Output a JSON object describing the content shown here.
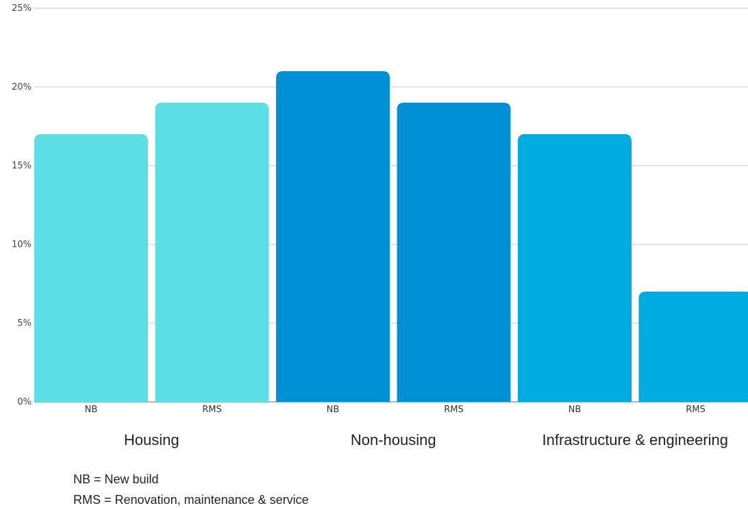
{
  "chart_data": {
    "type": "bar",
    "title": "",
    "xlabel": "",
    "ylabel": "",
    "ylim": [
      0,
      25
    ],
    "y_ticks": [
      "0%",
      "5%",
      "10%",
      "15%",
      "20%",
      "25%"
    ],
    "grid": true,
    "groups": [
      {
        "name": "Housing",
        "color": "#5ce0e6",
        "categories": [
          "NB",
          "RMS"
        ],
        "values": [
          17,
          19
        ]
      },
      {
        "name": "Non-housing",
        "color": "#0090d6",
        "categories": [
          "NB",
          "RMS"
        ],
        "values": [
          21,
          19
        ]
      },
      {
        "name": "Infrastructure & engineering",
        "color": "#00acdf",
        "categories": [
          "NB",
          "RMS"
        ],
        "values": [
          17,
          7
        ]
      }
    ]
  },
  "notes": {
    "nb": "NB = New build",
    "rms": "RMS = Renovation, maintenance & service"
  }
}
